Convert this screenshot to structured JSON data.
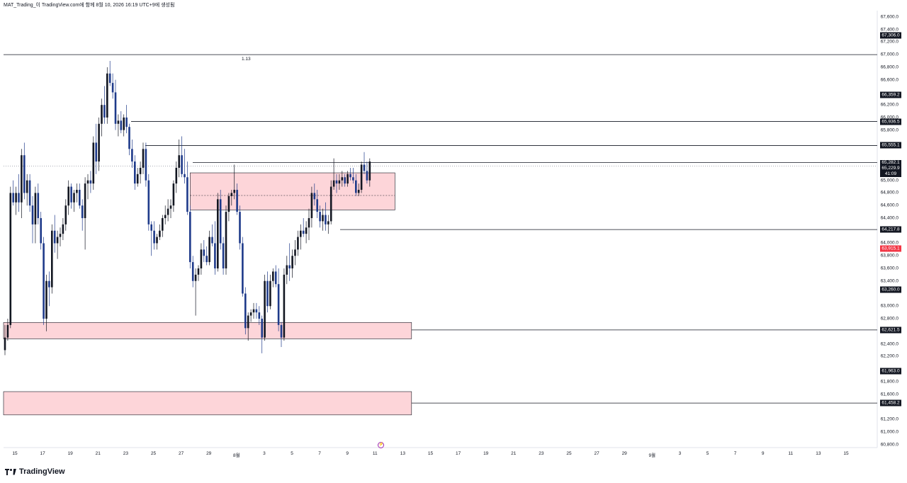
{
  "header": {
    "title": "MAT_Trading_이 TradingView.com에 함께 8월 10, 2026 16:19 UTC+9에 생성됨"
  },
  "brand": {
    "name": "TradingView",
    "logo_icon": "tradingview-logo-icon",
    "replay_icon": "replay-icon"
  },
  "colors": {
    "up_candle": "#131722",
    "down_candle": "#1e3a8a",
    "zone_fill": "#fdd5d9",
    "zone_border": "#131722",
    "red_badge": "#f23645"
  },
  "chart_data": {
    "type": "candlestick",
    "ylim": [
      60750,
      67700
    ],
    "y_ticks": [
      {
        "value": 67600,
        "label": "67,600.0"
      },
      {
        "value": 67400,
        "label": "67,400.0"
      },
      {
        "value": 67200,
        "label": "67,200.0"
      },
      {
        "value": 67000,
        "label": "67,000.0"
      },
      {
        "value": 66800,
        "label": "66,800.0"
      },
      {
        "value": 66600,
        "label": "66,600.0"
      },
      {
        "value": 66200,
        "label": "66,200.0"
      },
      {
        "value": 66000,
        "label": "66,000.0"
      },
      {
        "value": 65800,
        "label": "65,800.0"
      },
      {
        "value": 65000,
        "label": "65,000.0"
      },
      {
        "value": 64800,
        "label": "64,800.0"
      },
      {
        "value": 64600,
        "label": "64,600.0"
      },
      {
        "value": 64400,
        "label": "64,400.0"
      },
      {
        "value": 64000,
        "label": "64,000.0"
      },
      {
        "value": 63800,
        "label": "63,800.0"
      },
      {
        "value": 63600,
        "label": "63,600.0"
      },
      {
        "value": 63400,
        "label": "63,400.0"
      },
      {
        "value": 63000,
        "label": "63,000.0"
      },
      {
        "value": 62800,
        "label": "62,800.0"
      },
      {
        "value": 62400,
        "label": "62,400.0"
      },
      {
        "value": 62200,
        "label": "62,200.0"
      },
      {
        "value": 61800,
        "label": "61,800.0"
      },
      {
        "value": 61600,
        "label": "61,600.0"
      },
      {
        "value": 61200,
        "label": "61,200.0"
      },
      {
        "value": 61000,
        "label": "61,000.0"
      },
      {
        "value": 60800,
        "label": "60,800.0"
      }
    ],
    "x_ticks": [
      "15",
      "17",
      "19",
      "21",
      "23",
      "25",
      "27",
      "29",
      "8월",
      "3",
      "5",
      "7",
      "9",
      "11",
      "13",
      "15",
      "17",
      "19",
      "21",
      "23",
      "25",
      "27",
      "29",
      "9월",
      "3",
      "5",
      "7",
      "9",
      "11",
      "13",
      "15"
    ],
    "horizontal_levels": [
      {
        "value": 67000,
        "label": "1.13"
      },
      {
        "value": 67306,
        "badge": "67,306.0"
      },
      {
        "value": 66359.2,
        "badge": "66,359.2"
      },
      {
        "value": 65936.5,
        "badge": "65,936.5"
      },
      {
        "value": 65555.1,
        "badge": "65,555.1"
      },
      {
        "value": 65282.1,
        "badge": "65,282.1"
      },
      {
        "value": 64217.8,
        "badge": "64,217.8"
      },
      {
        "value": 63915.1,
        "badge": "63,915.1"
      },
      {
        "value": 63260,
        "badge": "63,260.0"
      },
      {
        "value": 62621.5,
        "badge": "62,621.5"
      },
      {
        "value": 61963,
        "badge": "61,963.0"
      },
      {
        "value": 61458.2,
        "badge": "61,458.2"
      }
    ],
    "current_price": {
      "value": 65229.9,
      "badge": "65,229.9",
      "countdown": "41:09"
    },
    "zones": [
      {
        "top": 65120,
        "bottom": 64530,
        "mid": 64760,
        "from_candle": 67,
        "to_candle": 136
      },
      {
        "top": 62740,
        "bottom": 62480,
        "from_candle": 0,
        "to_candle": 142
      },
      {
        "top": 61640,
        "bottom": 61270,
        "from_candle": 0,
        "to_candle": 142
      }
    ],
    "candles": [
      [
        62300,
        62700,
        62220,
        62500
      ],
      [
        62500,
        62800,
        62450,
        62700
      ],
      [
        62700,
        64900,
        62650,
        64800
      ],
      [
        64800,
        65000,
        64600,
        64650
      ],
      [
        64650,
        64900,
        64450,
        64800
      ],
      [
        64800,
        65100,
        64500,
        64650
      ],
      [
        64650,
        65500,
        64400,
        65400
      ],
      [
        65400,
        65600,
        64700,
        64800
      ],
      [
        64800,
        65100,
        64600,
        65000
      ],
      [
        65000,
        65100,
        64500,
        64600
      ],
      [
        64600,
        64750,
        64000,
        64300
      ],
      [
        64300,
        64900,
        64000,
        64800
      ],
      [
        64800,
        64950,
        64300,
        64400
      ],
      [
        64400,
        64500,
        63900,
        64000
      ],
      [
        64000,
        64100,
        62700,
        62800
      ],
      [
        62800,
        63500,
        62600,
        63400
      ],
      [
        63400,
        63550,
        63000,
        63300
      ],
      [
        63300,
        64300,
        63200,
        64200
      ],
      [
        64200,
        64450,
        63850,
        64000
      ],
      [
        64000,
        64200,
        63750,
        64100
      ],
      [
        64100,
        64250,
        63950,
        64150
      ],
      [
        64150,
        64400,
        64050,
        64300
      ],
      [
        64300,
        64700,
        64200,
        64600
      ],
      [
        64600,
        65000,
        64450,
        64900
      ],
      [
        64900,
        64950,
        64550,
        64650
      ],
      [
        64650,
        64850,
        64500,
        64800
      ],
      [
        64800,
        64950,
        64650,
        64850
      ],
      [
        64850,
        64950,
        64550,
        64600
      ],
      [
        64600,
        64700,
        64200,
        64400
      ],
      [
        64400,
        65050,
        63900,
        64950
      ],
      [
        64950,
        65100,
        64700,
        65000
      ],
      [
        65000,
        65150,
        64800,
        64950
      ],
      [
        64950,
        65700,
        64850,
        65600
      ],
      [
        65600,
        65900,
        65100,
        65300
      ],
      [
        65300,
        66000,
        65150,
        65900
      ],
      [
        65900,
        66300,
        65700,
        66200
      ],
      [
        66200,
        66500,
        65900,
        66000
      ],
      [
        66000,
        66800,
        65900,
        66700
      ],
      [
        66700,
        66900,
        66500,
        66550
      ],
      [
        66550,
        66700,
        66300,
        66400
      ],
      [
        66400,
        66600,
        65800,
        65900
      ],
      [
        65900,
        66050,
        65700,
        65950
      ],
      [
        65950,
        66100,
        65750,
        65800
      ],
      [
        65800,
        66050,
        65700,
        66000
      ],
      [
        66000,
        66200,
        65750,
        65850
      ],
      [
        65850,
        65900,
        65400,
        65500
      ],
      [
        65500,
        65650,
        65200,
        65300
      ],
      [
        65300,
        65400,
        64850,
        64950
      ],
      [
        64950,
        65200,
        64900,
        65100
      ],
      [
        65100,
        65300,
        64950,
        65200
      ],
      [
        65200,
        65600,
        65100,
        65500
      ],
      [
        65500,
        65600,
        64900,
        65000
      ],
      [
        65000,
        65100,
        64200,
        64300
      ],
      [
        64300,
        64350,
        63800,
        64200
      ],
      [
        64200,
        64350,
        63900,
        64000
      ],
      [
        64000,
        64150,
        63900,
        64100
      ],
      [
        64100,
        64300,
        64050,
        64200
      ],
      [
        64200,
        64450,
        64100,
        64400
      ],
      [
        64400,
        64600,
        64300,
        64450
      ],
      [
        64450,
        64700,
        64350,
        64550
      ],
      [
        64550,
        64700,
        64400,
        64600
      ],
      [
        64600,
        65000,
        64500,
        64950
      ],
      [
        64950,
        65300,
        64800,
        65200
      ],
      [
        65200,
        65650,
        65050,
        65400
      ],
      [
        65400,
        65700,
        65050,
        65100
      ],
      [
        65100,
        65500,
        64950,
        65050
      ],
      [
        65050,
        65300,
        64450,
        64500
      ],
      [
        64500,
        64600,
        63600,
        63700
      ],
      [
        63700,
        63800,
        63300,
        63400
      ],
      [
        63400,
        63600,
        62850,
        63500
      ],
      [
        63500,
        63650,
        63400,
        63600
      ],
      [
        63600,
        64000,
        63500,
        63900
      ],
      [
        63900,
        64050,
        63700,
        63800
      ],
      [
        63800,
        63950,
        63650,
        63700
      ],
      [
        63700,
        64200,
        63650,
        64100
      ],
      [
        64100,
        64300,
        63950,
        64000
      ],
      [
        64000,
        64350,
        63500,
        63600
      ],
      [
        63600,
        64800,
        63550,
        64700
      ],
      [
        64700,
        64850,
        63900,
        64000
      ],
      [
        64000,
        64100,
        63500,
        63600
      ],
      [
        63600,
        64600,
        63500,
        64500
      ],
      [
        64500,
        64800,
        64350,
        64750
      ],
      [
        64750,
        64850,
        64600,
        64800
      ],
      [
        64800,
        65250,
        64700,
        64850
      ],
      [
        64850,
        64950,
        64450,
        64500
      ],
      [
        64500,
        64600,
        63900,
        64000
      ],
      [
        64000,
        64100,
        63150,
        63200
      ],
      [
        63200,
        63300,
        62550,
        62650
      ],
      [
        62650,
        62900,
        62450,
        62850
      ],
      [
        62850,
        62950,
        62750,
        62900
      ],
      [
        62900,
        63050,
        62800,
        62950
      ],
      [
        62950,
        63050,
        62800,
        62900
      ],
      [
        62900,
        63000,
        62700,
        62800
      ],
      [
        62800,
        62850,
        62250,
        62500
      ],
      [
        62500,
        63500,
        62450,
        63400
      ],
      [
        63400,
        63550,
        62900,
        63000
      ],
      [
        63000,
        63500,
        62950,
        63400
      ],
      [
        63400,
        63600,
        63300,
        63550
      ],
      [
        63550,
        63650,
        63300,
        63350
      ],
      [
        63350,
        63600,
        62600,
        62700
      ],
      [
        62700,
        62750,
        62350,
        62500
      ],
      [
        62500,
        63600,
        62450,
        63500
      ],
      [
        63500,
        63800,
        63350,
        63650
      ],
      [
        63650,
        64000,
        63400,
        63600
      ],
      [
        63600,
        63900,
        63450,
        63800
      ],
      [
        63800,
        64050,
        63650,
        63900
      ],
      [
        63900,
        64200,
        63800,
        64100
      ],
      [
        64100,
        64300,
        63900,
        64200
      ],
      [
        64200,
        64400,
        64100,
        64150
      ],
      [
        64150,
        64350,
        64000,
        64250
      ],
      [
        64250,
        64550,
        64050,
        64400
      ],
      [
        64400,
        64900,
        64250,
        64800
      ],
      [
        64800,
        64950,
        64600,
        64700
      ],
      [
        64700,
        64850,
        64400,
        64500
      ],
      [
        64500,
        64600,
        64250,
        64350
      ],
      [
        64350,
        64550,
        64200,
        64450
      ],
      [
        64450,
        64650,
        64200,
        64300
      ],
      [
        64300,
        64450,
        64150,
        64350
      ],
      [
        64350,
        65000,
        64300,
        64900
      ],
      [
        64900,
        65350,
        64850,
        65000
      ],
      [
        65000,
        65100,
        64800,
        64950
      ],
      [
        64950,
        65100,
        64850,
        65000
      ],
      [
        65000,
        65150,
        64900,
        65050
      ],
      [
        65050,
        65100,
        64900,
        64950
      ],
      [
        64950,
        65150,
        64900,
        65100
      ],
      [
        65100,
        65200,
        65000,
        65050
      ],
      [
        65050,
        65200,
        64950,
        65000
      ],
      [
        65000,
        65100,
        64750,
        64800
      ],
      [
        64800,
        64950,
        64750,
        64850
      ],
      [
        64850,
        65300,
        64800,
        65250
      ],
      [
        65250,
        65450,
        65100,
        65150
      ],
      [
        65150,
        65300,
        64950,
        65000
      ],
      [
        65000,
        65350,
        64900,
        65300
      ]
    ]
  }
}
